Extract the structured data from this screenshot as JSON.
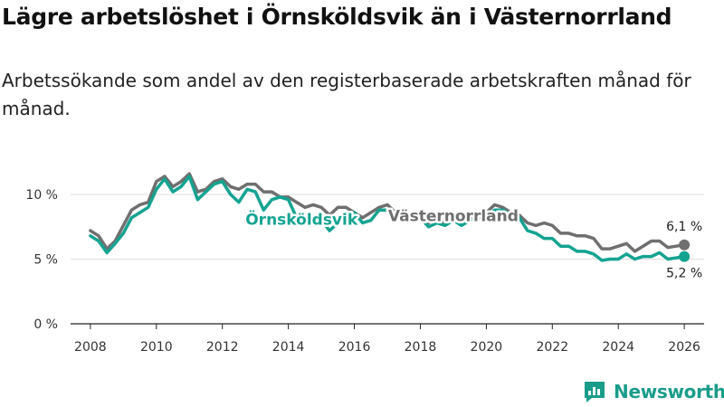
{
  "header": {
    "title": "Lägre arbetslöshet i Örnsköldsvik än i Västernorrland",
    "subtitle": "Arbetssökande som andel av den registerbaserade arbetskraften månad för månad."
  },
  "brand": {
    "name": "Newsworthy",
    "icon": "bar-chart-logo-icon"
  },
  "colors": {
    "ornskoldsvik": "#14a391",
    "vasternorrland": "#6f6f6f",
    "grid": "#dddddd"
  },
  "chart_data": {
    "type": "line",
    "title": "Lägre arbetslöshet i Örnsköldsvik än i Västernorrland",
    "xlabel": "",
    "ylabel": "",
    "xlim": [
      2007.4,
      2026.6
    ],
    "ylim": [
      0,
      10
    ],
    "x_ticks": [
      2008,
      2010,
      2012,
      2014,
      2016,
      2018,
      2020,
      2022,
      2024,
      2026
    ],
    "x_tick_labels": [
      "2008",
      "2010",
      "2012",
      "2014",
      "2016",
      "2018",
      "2020",
      "2022",
      "2024",
      "2026"
    ],
    "y_ticks": [
      0,
      5,
      10
    ],
    "y_tick_labels": [
      "0 %",
      "5 %",
      "10 %"
    ],
    "grid": true,
    "series": [
      {
        "name": "Västernorrland",
        "color_key": "vasternorrland",
        "end_label": "6,1 %",
        "points": [
          [
            2008.0,
            7.2
          ],
          [
            2008.25,
            6.8
          ],
          [
            2008.5,
            5.8
          ],
          [
            2008.75,
            6.4
          ],
          [
            2009.0,
            7.6
          ],
          [
            2009.25,
            8.8
          ],
          [
            2009.5,
            9.2
          ],
          [
            2009.75,
            9.4
          ],
          [
            2010.0,
            11.0
          ],
          [
            2010.25,
            11.4
          ],
          [
            2010.5,
            10.6
          ],
          [
            2010.75,
            11.0
          ],
          [
            2011.0,
            11.6
          ],
          [
            2011.25,
            10.2
          ],
          [
            2011.5,
            10.4
          ],
          [
            2011.75,
            11.0
          ],
          [
            2012.0,
            11.2
          ],
          [
            2012.25,
            10.6
          ],
          [
            2012.5,
            10.4
          ],
          [
            2012.75,
            10.8
          ],
          [
            2013.0,
            10.8
          ],
          [
            2013.25,
            10.2
          ],
          [
            2013.5,
            10.2
          ],
          [
            2013.75,
            9.8
          ],
          [
            2014.0,
            9.8
          ],
          [
            2014.25,
            9.4
          ],
          [
            2014.5,
            9.0
          ],
          [
            2014.75,
            9.2
          ],
          [
            2015.0,
            9.0
          ],
          [
            2015.25,
            8.4
          ],
          [
            2015.5,
            9.0
          ],
          [
            2015.75,
            9.0
          ],
          [
            2016.0,
            8.6
          ],
          [
            2016.25,
            8.2
          ],
          [
            2016.5,
            8.6
          ],
          [
            2016.75,
            9.0
          ],
          [
            2017.0,
            9.2
          ],
          [
            2017.25,
            8.6
          ],
          [
            2017.5,
            8.4
          ],
          [
            2017.75,
            8.6
          ],
          [
            2018.0,
            8.2
          ],
          [
            2018.25,
            7.8
          ],
          [
            2018.5,
            8.2
          ],
          [
            2018.75,
            7.8
          ],
          [
            2019.0,
            8.2
          ],
          [
            2019.25,
            7.8
          ],
          [
            2019.5,
            8.2
          ],
          [
            2019.75,
            8.4
          ],
          [
            2020.0,
            8.6
          ],
          [
            2020.25,
            9.2
          ],
          [
            2020.5,
            9.0
          ],
          [
            2020.75,
            8.6
          ],
          [
            2021.0,
            8.4
          ],
          [
            2021.25,
            7.8
          ],
          [
            2021.5,
            7.6
          ],
          [
            2021.75,
            7.8
          ],
          [
            2022.0,
            7.6
          ],
          [
            2022.25,
            7.0
          ],
          [
            2022.5,
            7.0
          ],
          [
            2022.75,
            6.8
          ],
          [
            2023.0,
            6.8
          ],
          [
            2023.25,
            6.6
          ],
          [
            2023.5,
            5.8
          ],
          [
            2023.75,
            5.8
          ],
          [
            2024.0,
            6.0
          ],
          [
            2024.25,
            6.2
          ],
          [
            2024.5,
            5.6
          ],
          [
            2024.75,
            6.0
          ],
          [
            2025.0,
            6.4
          ],
          [
            2025.25,
            6.4
          ],
          [
            2025.5,
            5.9
          ],
          [
            2025.75,
            6.0
          ],
          [
            2026.0,
            6.1
          ]
        ]
      },
      {
        "name": "Örnsköldsvik",
        "color_key": "ornskoldsvik",
        "end_label": "5,2 %",
        "points": [
          [
            2008.0,
            6.8
          ],
          [
            2008.25,
            6.4
          ],
          [
            2008.5,
            5.5
          ],
          [
            2008.75,
            6.2
          ],
          [
            2009.0,
            7.0
          ],
          [
            2009.25,
            8.2
          ],
          [
            2009.5,
            8.6
          ],
          [
            2009.75,
            9.0
          ],
          [
            2010.0,
            10.4
          ],
          [
            2010.25,
            11.2
          ],
          [
            2010.5,
            10.2
          ],
          [
            2010.75,
            10.6
          ],
          [
            2011.0,
            11.4
          ],
          [
            2011.25,
            9.6
          ],
          [
            2011.5,
            10.2
          ],
          [
            2011.75,
            10.8
          ],
          [
            2012.0,
            11.0
          ],
          [
            2012.25,
            10.0
          ],
          [
            2012.5,
            9.4
          ],
          [
            2012.75,
            10.4
          ],
          [
            2013.0,
            10.2
          ],
          [
            2013.25,
            8.8
          ],
          [
            2013.5,
            9.6
          ],
          [
            2013.75,
            9.8
          ],
          [
            2014.0,
            9.6
          ],
          [
            2014.25,
            8.2
          ],
          [
            2014.5,
            7.8
          ],
          [
            2014.75,
            8.0
          ],
          [
            2015.0,
            8.0
          ],
          [
            2015.25,
            7.2
          ],
          [
            2015.5,
            7.8
          ],
          [
            2015.75,
            8.4
          ],
          [
            2016.0,
            8.6
          ],
          [
            2016.25,
            7.8
          ],
          [
            2016.5,
            8.0
          ],
          [
            2016.75,
            8.8
          ],
          [
            2017.0,
            8.8
          ],
          [
            2017.25,
            8.2
          ],
          [
            2017.5,
            8.2
          ],
          [
            2017.75,
            8.4
          ],
          [
            2018.0,
            8.2
          ],
          [
            2018.25,
            7.5
          ],
          [
            2018.5,
            7.8
          ],
          [
            2018.75,
            7.6
          ],
          [
            2019.0,
            8.0
          ],
          [
            2019.25,
            7.6
          ],
          [
            2019.5,
            8.0
          ],
          [
            2019.75,
            8.2
          ],
          [
            2020.0,
            8.2
          ],
          [
            2020.25,
            8.8
          ],
          [
            2020.5,
            8.8
          ],
          [
            2020.75,
            8.4
          ],
          [
            2021.0,
            8.2
          ],
          [
            2021.25,
            7.2
          ],
          [
            2021.5,
            7.0
          ],
          [
            2021.75,
            6.6
          ],
          [
            2022.0,
            6.6
          ],
          [
            2022.25,
            6.0
          ],
          [
            2022.5,
            6.0
          ],
          [
            2022.75,
            5.6
          ],
          [
            2023.0,
            5.6
          ],
          [
            2023.25,
            5.4
          ],
          [
            2023.5,
            4.9
          ],
          [
            2023.75,
            5.0
          ],
          [
            2024.0,
            5.0
          ],
          [
            2024.25,
            5.4
          ],
          [
            2024.5,
            5.0
          ],
          [
            2024.75,
            5.2
          ],
          [
            2025.0,
            5.2
          ],
          [
            2025.25,
            5.5
          ],
          [
            2025.5,
            5.0
          ],
          [
            2025.75,
            5.1
          ],
          [
            2026.0,
            5.2
          ]
        ]
      }
    ],
    "annotations": [
      {
        "series": "Örnsköldsvik",
        "text": "Örnsköldsvik",
        "at_x": 2014.4,
        "color_key": "ornskoldsvik"
      },
      {
        "series": "Västernorrland",
        "text": "Västernorrland",
        "at_x": 2019.0,
        "color_key": "vasternorrland"
      }
    ]
  }
}
